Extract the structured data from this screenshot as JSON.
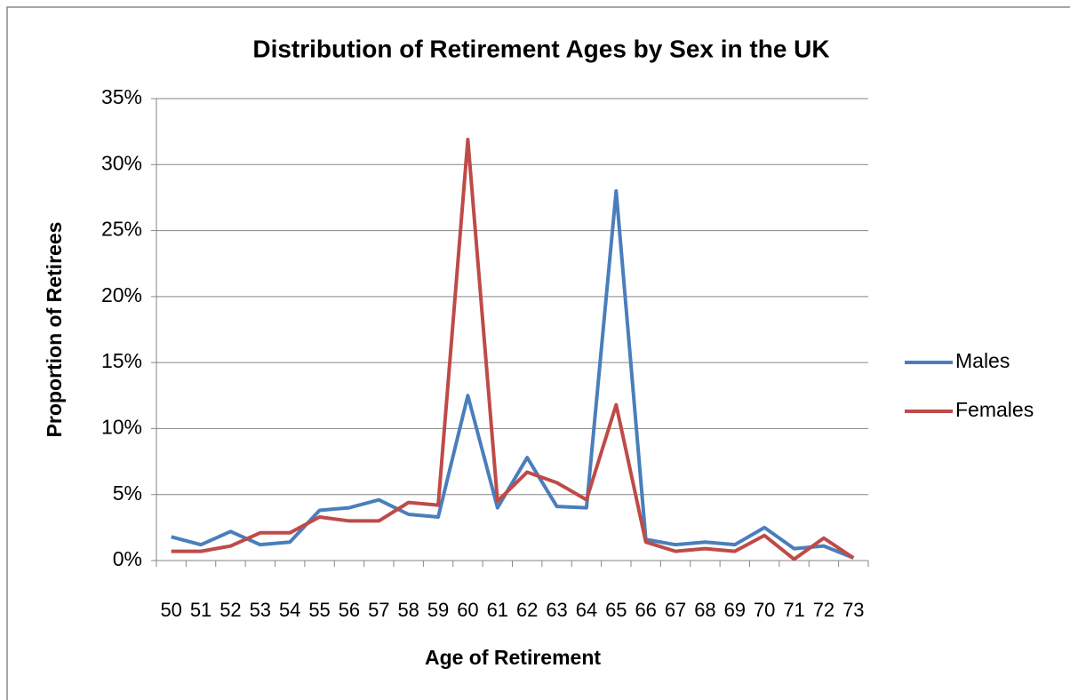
{
  "chart_data": {
    "type": "line",
    "title": "Distribution of Retirement Ages by Sex in the UK",
    "x_label": "Age of Retirement",
    "y_label": "Proportion of Retirees",
    "categories": [
      "50",
      "51",
      "52",
      "53",
      "54",
      "55",
      "56",
      "57",
      "58",
      "59",
      "60",
      "61",
      "62",
      "63",
      "64",
      "65",
      "66",
      "67",
      "68",
      "69",
      "70",
      "71",
      "72",
      "73"
    ],
    "series": [
      {
        "name": "Males",
        "color": "#4a7ebb",
        "values": [
          1.8,
          1.2,
          2.2,
          1.2,
          1.4,
          3.8,
          4.0,
          4.6,
          3.5,
          3.3,
          12.5,
          4.0,
          7.8,
          4.1,
          4.0,
          28.0,
          1.6,
          1.2,
          1.4,
          1.2,
          2.5,
          0.9,
          1.1,
          0.2
        ]
      },
      {
        "name": "Females",
        "color": "#be4b48",
        "values": [
          0.7,
          0.7,
          1.1,
          2.1,
          2.1,
          3.3,
          3.0,
          3.0,
          4.4,
          4.2,
          31.9,
          4.5,
          6.7,
          5.9,
          4.6,
          11.8,
          1.4,
          0.7,
          0.9,
          0.7,
          1.9,
          0.1,
          1.7,
          0.2
        ]
      }
    ],
    "ylim": [
      0,
      35
    ],
    "yticks": [
      {
        "value": 0,
        "label": "0%"
      },
      {
        "value": 5,
        "label": "5%"
      },
      {
        "value": 10,
        "label": "10%"
      },
      {
        "value": 15,
        "label": "15%"
      },
      {
        "value": 20,
        "label": "20%"
      },
      {
        "value": 25,
        "label": "25%"
      },
      {
        "value": 30,
        "label": "30%"
      },
      {
        "value": 35,
        "label": "35%"
      }
    ],
    "grid": true,
    "legend": "right"
  }
}
